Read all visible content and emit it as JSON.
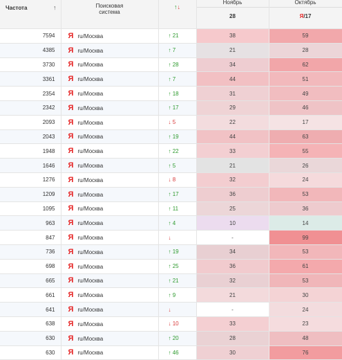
{
  "header": {
    "frequency": "Частота",
    "sort_icon": "↑",
    "engine_line1": "Поисковая",
    "engine_line2": "система",
    "change_up": "↑",
    "change_down": "↓",
    "month_nov": "Ноябрь",
    "day_nov": "28",
    "month_oct": "Октябрь",
    "ya_letter": "Я",
    "day_oct": "/17"
  },
  "colors": {
    "up": "#2e9a2e",
    "down": "#d93a3a",
    "yandex": "#e52222"
  },
  "rows": [
    {
      "freq": "7594",
      "region": "ru/Москва",
      "dir": "up",
      "chg": "21",
      "nov": "38",
      "oct": "59",
      "nov_bg": "#f6c9cc",
      "oct_bg": "#f2a8ab"
    },
    {
      "freq": "4385",
      "region": "ru/Москва",
      "dir": "up",
      "chg": "7",
      "nov": "21",
      "oct": "28",
      "nov_bg": "#e6e1e3",
      "oct_bg": "#ecd5d8"
    },
    {
      "freq": "3730",
      "region": "ru/Москва",
      "dir": "up",
      "chg": "28",
      "nov": "34",
      "oct": "62",
      "nov_bg": "#eecdd1",
      "oct_bg": "#f2a6a9"
    },
    {
      "freq": "3361",
      "region": "ru/Москва",
      "dir": "up",
      "chg": "7",
      "nov": "44",
      "oct": "51",
      "nov_bg": "#f2c0c3",
      "oct_bg": "#f2b9bc"
    },
    {
      "freq": "2354",
      "region": "ru/Москва",
      "dir": "up",
      "chg": "18",
      "nov": "31",
      "oct": "49",
      "nov_bg": "#efd0d3",
      "oct_bg": "#f1bdc0"
    },
    {
      "freq": "2342",
      "region": "ru/Москва",
      "dir": "up",
      "chg": "17",
      "nov": "29",
      "oct": "46",
      "nov_bg": "#efd3d5",
      "oct_bg": "#efc3c6"
    },
    {
      "freq": "2093",
      "region": "ru/Москва",
      "dir": "down",
      "chg": "5",
      "nov": "22",
      "oct": "17",
      "nov_bg": "#f3dcde",
      "oct_bg": "#f5e3e4"
    },
    {
      "freq": "2043",
      "region": "ru/Москва",
      "dir": "up",
      "chg": "19",
      "nov": "44",
      "oct": "63",
      "nov_bg": "#f1c2c5",
      "oct_bg": "#efadb0"
    },
    {
      "freq": "1948",
      "region": "ru/Москва",
      "dir": "up",
      "chg": "22",
      "nov": "33",
      "oct": "55",
      "nov_bg": "#f3cfd2",
      "oct_bg": "#f5b3b6"
    },
    {
      "freq": "1646",
      "region": "ru/Москва",
      "dir": "up",
      "chg": "5",
      "nov": "21",
      "oct": "26",
      "nov_bg": "#e3e3e3",
      "oct_bg": "#ead7d9"
    },
    {
      "freq": "1276",
      "region": "ru/Москва",
      "dir": "down",
      "chg": "8",
      "nov": "32",
      "oct": "24",
      "nov_bg": "#f3cdd0",
      "oct_bg": "#f5dadc"
    },
    {
      "freq": "1209",
      "region": "ru/Москва",
      "dir": "up",
      "chg": "17",
      "nov": "36",
      "oct": "53",
      "nov_bg": "#eecdd0",
      "oct_bg": "#f2b7ba"
    },
    {
      "freq": "1095",
      "region": "ru/Москва",
      "dir": "up",
      "chg": "11",
      "nov": "25",
      "oct": "36",
      "nov_bg": "#ecd6d8",
      "oct_bg": "#eecbce"
    },
    {
      "freq": "963",
      "region": "ru/Москва",
      "dir": "up",
      "chg": "4",
      "nov": "10",
      "oct": "14",
      "nov_bg": "#ecdcef",
      "oct_bg": "#dcebe7"
    },
    {
      "freq": "847",
      "region": "ru/Москва",
      "dir": "down",
      "chg": "",
      "nov": "-",
      "oct": "99",
      "nov_bg": "#ffffff",
      "oct_bg": "#f09093"
    },
    {
      "freq": "736",
      "region": "ru/Москва",
      "dir": "up",
      "chg": "19",
      "nov": "34",
      "oct": "53",
      "nov_bg": "#e8cfd2",
      "oct_bg": "#f2b7ba"
    },
    {
      "freq": "698",
      "region": "ru/Москва",
      "dir": "up",
      "chg": "25",
      "nov": "36",
      "oct": "61",
      "nov_bg": "#f1cbce",
      "oct_bg": "#f4a9ac"
    },
    {
      "freq": "665",
      "region": "ru/Москва",
      "dir": "up",
      "chg": "21",
      "nov": "32",
      "oct": "53",
      "nov_bg": "#e9d0d3",
      "oct_bg": "#f0b6b9"
    },
    {
      "freq": "661",
      "region": "ru/Москва",
      "dir": "up",
      "chg": "9",
      "nov": "21",
      "oct": "30",
      "nov_bg": "#f3dadc",
      "oct_bg": "#f4d3d5"
    },
    {
      "freq": "641",
      "region": "ru/Москва",
      "dir": "down",
      "chg": "",
      "nov": "-",
      "oct": "24",
      "nov_bg": "#ffffff",
      "oct_bg": "#f3dcde"
    },
    {
      "freq": "638",
      "region": "ru/Москва",
      "dir": "down",
      "chg": "10",
      "nov": "33",
      "oct": "23",
      "nov_bg": "#f4cfd2",
      "oct_bg": "#f5dcde"
    },
    {
      "freq": "630",
      "region": "ru/Москва",
      "dir": "up",
      "chg": "20",
      "nov": "28",
      "oct": "48",
      "nov_bg": "#ead2d4",
      "oct_bg": "#efbec1"
    },
    {
      "freq": "630",
      "region": "ru/Москва",
      "dir": "up",
      "chg": "46",
      "nov": "30",
      "oct": "76",
      "nov_bg": "#efd0d3",
      "oct_bg": "#f29c9f"
    }
  ]
}
